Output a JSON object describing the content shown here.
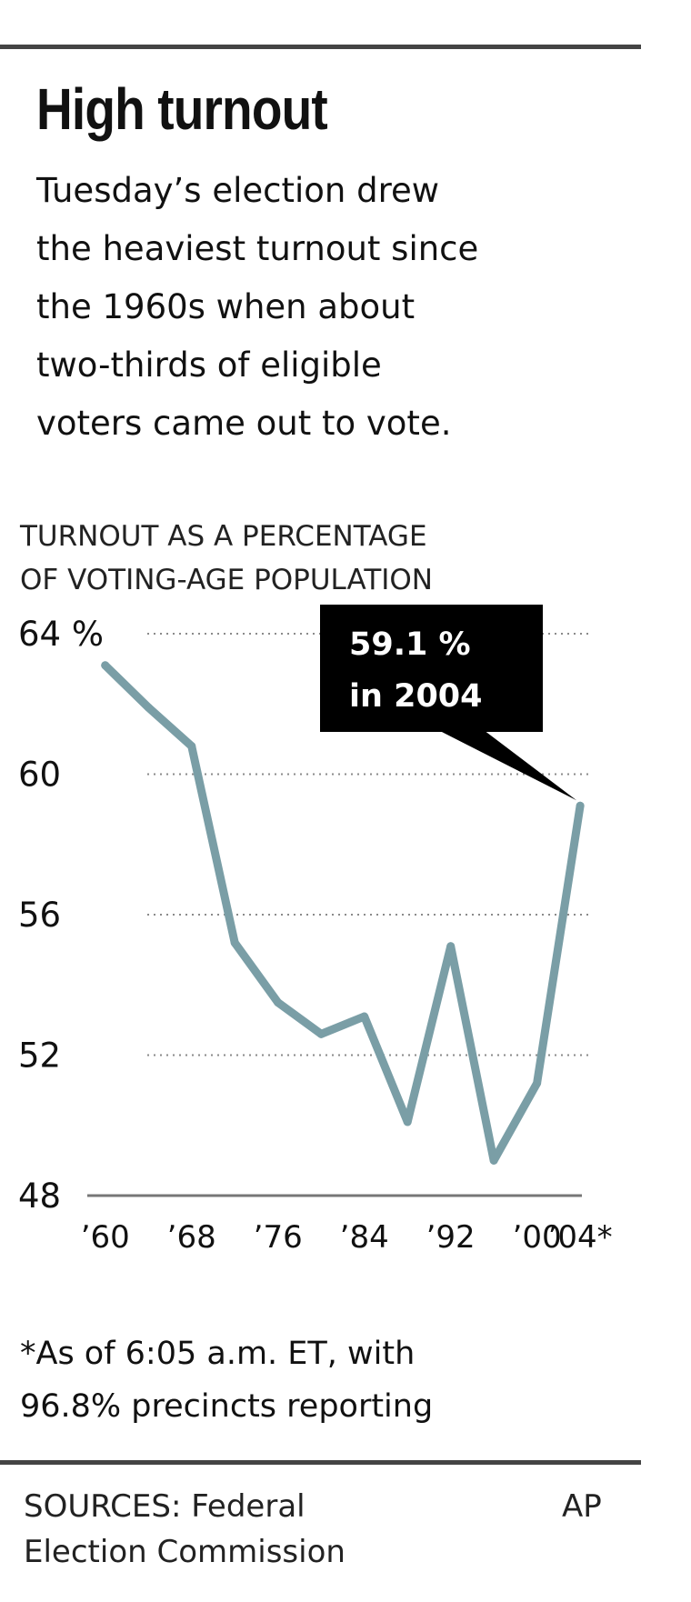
{
  "header": {
    "headline": "High turnout",
    "intro_lines": [
      "Tuesday’s election drew",
      "the heaviest turnout since",
      "the 1960s  when about",
      "two-thirds of eligible",
      "voters came out to vote."
    ]
  },
  "chart_data": {
    "type": "line",
    "title_lines": [
      "TURNOUT AS A PERCENTAGE",
      "OF VOTING-AGE POPULATION"
    ],
    "x": [
      1960,
      1964,
      1968,
      1972,
      1976,
      1980,
      1984,
      1988,
      1992,
      1996,
      2000,
      2004
    ],
    "series": [
      {
        "values": [
          63.1,
          61.9,
          60.8,
          55.2,
          53.5,
          52.6,
          53.1,
          50.1,
          55.1,
          49.0,
          51.2,
          59.1
        ],
        "color": "#7a9ea6"
      }
    ],
    "xticks": [
      {
        "value": 1960,
        "label": "’60"
      },
      {
        "value": 1968,
        "label": "’68"
      },
      {
        "value": 1976,
        "label": "’76"
      },
      {
        "value": 1984,
        "label": "’84"
      },
      {
        "value": 1992,
        "label": "’92"
      },
      {
        "value": 2000,
        "label": "’00"
      },
      {
        "value": 2004,
        "label": "’04*"
      }
    ],
    "yticks": [
      {
        "value": 64,
        "label": "64 %"
      },
      {
        "value": 60,
        "label": "60"
      },
      {
        "value": 56,
        "label": "56"
      },
      {
        "value": 52,
        "label": "52"
      },
      {
        "value": 48,
        "label": "48"
      }
    ],
    "ylim": [
      48,
      64
    ],
    "xlim": [
      1958,
      2005
    ],
    "grid": "dotted horizontal",
    "annotation": {
      "x": 2004,
      "y": 59.1,
      "lines": [
        "59.1 %",
        "in 2004"
      ]
    }
  },
  "footnote_lines": [
    "*As of 6:05 a.m. ET, with",
    "96.8% precincts reporting"
  ],
  "sources": {
    "lines": [
      "SOURCES: Federal",
      "Election Commission"
    ],
    "credit": "AP"
  },
  "colors": {
    "line": "#7a9ea6",
    "rules": "#444444",
    "annotation_bg": "#000000",
    "annotation_text": "#ffffff"
  }
}
